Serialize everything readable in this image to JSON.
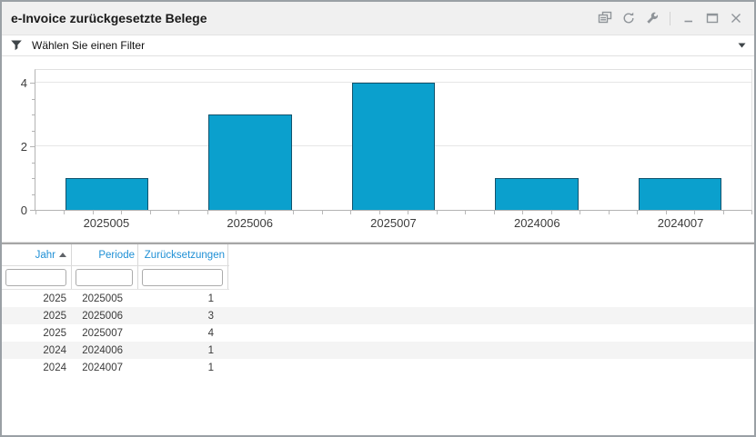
{
  "window": {
    "title": "e-Invoice zurückgesetzte Belege",
    "titlebar_icons": [
      "popout",
      "refresh",
      "wrench",
      "minimize",
      "maximize",
      "close"
    ]
  },
  "filter_bar": {
    "label": "Wählen Sie einen Filter",
    "leading_icon": "filter-funnel",
    "trailing_icon": "caret-down"
  },
  "chart_data": {
    "type": "bar",
    "categories": [
      "2025005",
      "2025006",
      "2025007",
      "2024006",
      "2024007"
    ],
    "values": [
      1,
      3,
      4,
      1,
      1
    ],
    "ylim": [
      0,
      4.4
    ],
    "yticks": [
      0,
      2,
      4
    ],
    "grid": true,
    "legend": false,
    "bar_color": "#0ba0cd",
    "bar_border_color": "#11536d"
  },
  "table": {
    "header_color": "#1e8fd5",
    "columns": [
      {
        "label": "Jahr",
        "sorted": "asc"
      },
      {
        "label": "Periode",
        "sorted": null
      },
      {
        "label": "Zurücksetzungen",
        "sorted": null
      }
    ],
    "filter_inputs": [
      {
        "value": "",
        "placeholder": ""
      },
      {
        "value": "",
        "placeholder": ""
      },
      {
        "value": "",
        "placeholder": ""
      }
    ],
    "rows": [
      [
        "2025",
        "2025005",
        "1"
      ],
      [
        "2025",
        "2025006",
        "3"
      ],
      [
        "2025",
        "2025007",
        "4"
      ],
      [
        "2024",
        "2024006",
        "1"
      ],
      [
        "2024",
        "2024007",
        "1"
      ]
    ]
  }
}
